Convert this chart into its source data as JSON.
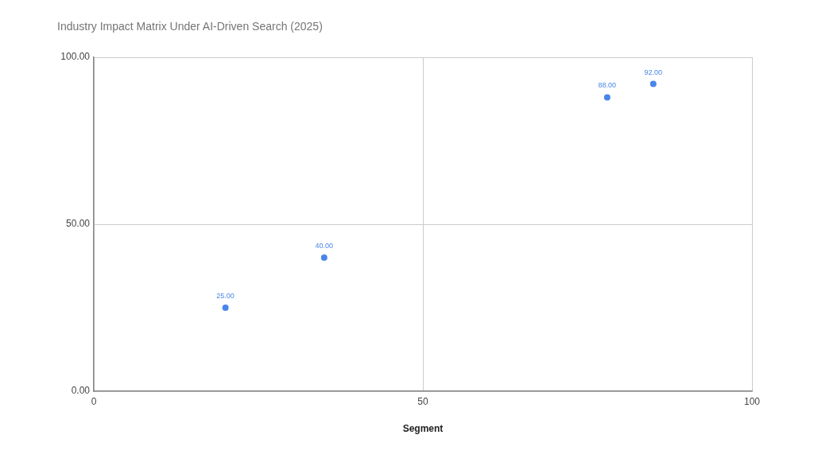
{
  "chart_data": {
    "type": "scatter",
    "title": "Industry Impact Matrix Under AI-Driven Search (2025)",
    "xlabel": "Segment",
    "x": [
      20,
      35,
      78,
      85
    ],
    "values": [
      25,
      40,
      88,
      92
    ],
    "value_labels": [
      "25.00",
      "40.00",
      "88.00",
      "92.00"
    ],
    "color": "#4a86e8",
    "xlim": [
      0,
      100
    ],
    "xticks": [
      0,
      50,
      100
    ],
    "ylim": [
      0,
      100
    ],
    "yticks": [
      {
        "value": 0,
        "label": "0.00"
      },
      {
        "value": 50,
        "label": "50.00"
      },
      {
        "value": 100,
        "label": "100.00"
      }
    ],
    "grid": true,
    "marker": "circle"
  }
}
